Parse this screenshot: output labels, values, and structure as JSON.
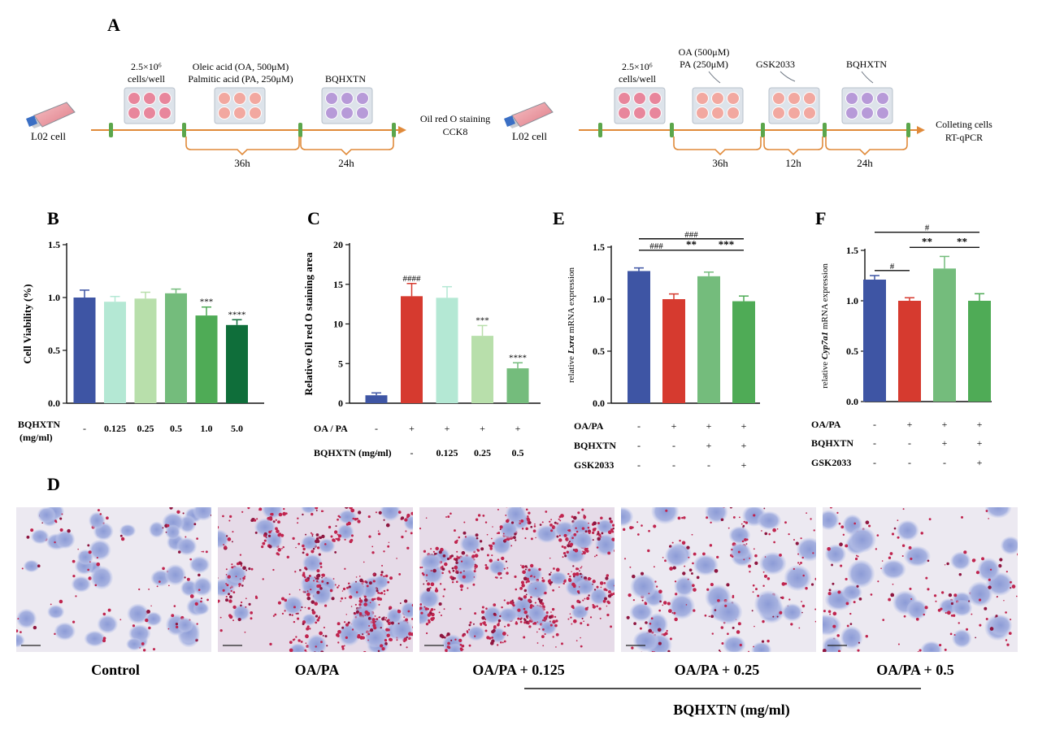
{
  "panel_letters": {
    "a": "A",
    "b": "B",
    "c": "C",
    "d": "D",
    "e": "E",
    "f": "F"
  },
  "colors": {
    "blue": "#3e55a4",
    "red": "#d63a2f",
    "mint": "#b4e8d4",
    "pale_green": "#b8dfab",
    "mid_green": "#74bc7c",
    "green": "#4fab56",
    "dark_green": "#0f6e3a",
    "timeline": "#e08a3a",
    "tick": "#5ba64b",
    "well_pink": "#e8869c",
    "well_salmon": "#f2a8a0",
    "well_purple": "#b79ad8"
  },
  "timeline_left": {
    "cell_label": "L02 cell",
    "seed_label_1": "2.5×10⁶",
    "seed_label_2": "cells/well",
    "treat_label_1": "Oleic acid (OA, 500μM)",
    "treat_label_2": "Palmitic acid (PA, 250μM)",
    "drug_label": "BQHXTN",
    "duration_1": "36h",
    "duration_2": "24h",
    "end_label_1": "Oil red O staining",
    "end_label_2": "CCK8"
  },
  "timeline_right": {
    "cell_label": "L02 cell",
    "seed_label_1": "2.5×10⁶",
    "seed_label_2": "cells/well",
    "treat_label_1": "OA (500μM)",
    "treat_label_2": "PA (250μM)",
    "agonist_label": "GSK2033",
    "drug_label": "BQHXTN",
    "duration_1": "36h",
    "duration_2": "12h",
    "duration_3": "24h",
    "end_label_1": "Colleting cells",
    "end_label_2": "RT-qPCR"
  },
  "panel_d": {
    "captions": [
      "Control",
      "OA/PA",
      "OA/PA + 0.125",
      "OA/PA + 0.25",
      "OA/PA + 0.5"
    ],
    "group_label": "BQHXTN (mg/ml)"
  },
  "chart_data": [
    {
      "id": "B",
      "type": "bar",
      "ylabel": "Cell Viability (%)",
      "ylim": [
        0,
        1.5
      ],
      "yticks": [
        "0.0",
        "0.5",
        "1.0",
        "1.5"
      ],
      "values": [
        1.0,
        0.96,
        0.99,
        1.04,
        0.83,
        0.74
      ],
      "errors": [
        0.07,
        0.05,
        0.06,
        0.04,
        0.08,
        0.05
      ],
      "bar_colors": [
        "#3e55a4",
        "#b4e8d4",
        "#b8dfab",
        "#74bc7c",
        "#4fab56",
        "#0f6e3a"
      ],
      "significance": [
        "",
        "",
        "",
        "",
        "***",
        "****"
      ],
      "condition_rows": [
        {
          "label": "BQHXTN",
          "label2": "(mg/ml)",
          "values": [
            "-",
            "0.125",
            "0.25",
            "0.5",
            "1.0",
            "5.0"
          ]
        }
      ]
    },
    {
      "id": "C",
      "type": "bar",
      "ylabel": "Relative Oil red O staining area",
      "ylim": [
        0,
        20
      ],
      "yticks": [
        "0",
        "5",
        "10",
        "15",
        "20"
      ],
      "values": [
        1.0,
        13.5,
        13.3,
        8.5,
        4.4
      ],
      "errors": [
        0.3,
        1.6,
        1.4,
        1.3,
        0.7
      ],
      "bar_colors": [
        "#3e55a4",
        "#d63a2f",
        "#b4e8d4",
        "#b8dfab",
        "#74bc7c"
      ],
      "significance": [
        "",
        "####",
        "",
        "***",
        "****"
      ],
      "condition_rows": [
        {
          "label": "OA / PA",
          "values": [
            "-",
            "+",
            "+",
            "+",
            "+"
          ]
        },
        {
          "label": "BQHXTN (mg/ml)",
          "values": [
            "-",
            "-",
            "0.125",
            "0.25",
            "0.5"
          ]
        }
      ]
    },
    {
      "id": "E",
      "type": "bar",
      "ylabel_pre": "relative ",
      "ylabel_italic": "Lxrα",
      "ylabel_post": " mRNA expression",
      "ylim": [
        0,
        1.5
      ],
      "yticks": [
        "0.0",
        "0.5",
        "1.0",
        "1.5"
      ],
      "values": [
        1.27,
        1.0,
        1.22,
        0.98
      ],
      "errors": [
        0.03,
        0.05,
        0.04,
        0.05
      ],
      "bar_colors": [
        "#3e55a4",
        "#d63a2f",
        "#74bc7c",
        "#4fab56"
      ],
      "brackets": [
        {
          "from": 0,
          "to": 3,
          "text": "###",
          "level": 1.58
        },
        {
          "from": 0,
          "to": 1,
          "text": "###",
          "level": 1.47
        },
        {
          "from": 1,
          "to": 2,
          "text": "**",
          "level": 1.47
        },
        {
          "from": 2,
          "to": 3,
          "text": "***",
          "level": 1.47
        }
      ],
      "condition_rows": [
        {
          "label": "OA/PA",
          "values": [
            "-",
            "+",
            "+",
            "+"
          ]
        },
        {
          "label": "BQHXTN",
          "values": [
            "-",
            "-",
            "+",
            "+"
          ]
        },
        {
          "label": "GSK2033",
          "values": [
            "-",
            "-",
            "-",
            "+"
          ]
        }
      ]
    },
    {
      "id": "F",
      "type": "bar",
      "ylabel_pre": "relative ",
      "ylabel_italic": "Cyp7a1",
      "ylabel_post": " mRNA expression",
      "ylim": [
        0,
        1.5
      ],
      "yticks": [
        "0.0",
        "0.5",
        "1.0",
        "1.5"
      ],
      "values": [
        1.21,
        1.0,
        1.32,
        1.0
      ],
      "errors": [
        0.04,
        0.03,
        0.12,
        0.07
      ],
      "bar_colors": [
        "#3e55a4",
        "#d63a2f",
        "#74bc7c",
        "#4fab56"
      ],
      "brackets": [
        {
          "from": 0,
          "to": 3,
          "text": "#",
          "level": 1.68
        },
        {
          "from": 0,
          "to": 1,
          "text": "#",
          "level": 1.3
        },
        {
          "from": 1,
          "to": 2,
          "text": "**",
          "level": 1.53
        },
        {
          "from": 2,
          "to": 3,
          "text": "**",
          "level": 1.53
        }
      ],
      "condition_rows": [
        {
          "label": "OA/PA",
          "values": [
            "-",
            "+",
            "+",
            "+"
          ]
        },
        {
          "label": "BQHXTN",
          "values": [
            "-",
            "-",
            "+",
            "+"
          ]
        },
        {
          "label": "GSK2033",
          "values": [
            "-",
            "-",
            "-",
            "+"
          ]
        }
      ]
    }
  ]
}
